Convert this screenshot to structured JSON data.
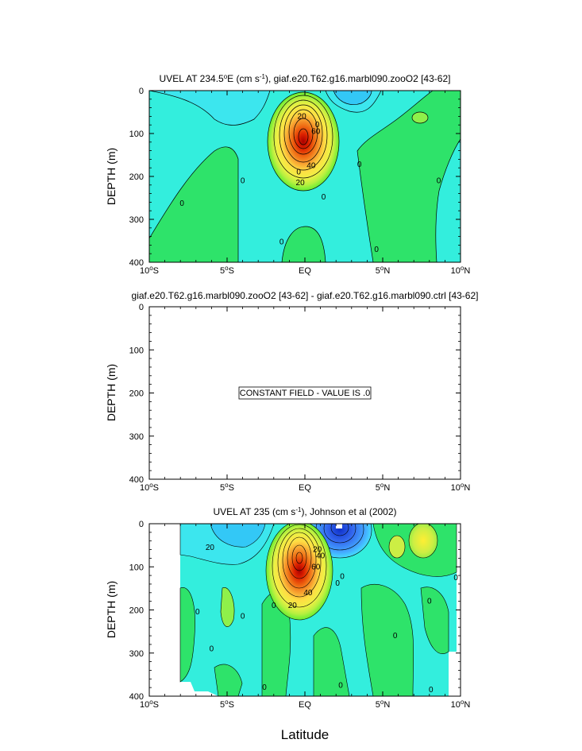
{
  "chart_data": [
    {
      "type": "heatmap",
      "title": "UVEL AT 234.5°E (cm s⁻¹), giaf.e20.T62.g16.marbl090.zooO2 [43-62]",
      "title_parts": {
        "main": "UVEL AT 234.5",
        "sup": "o",
        "mid": "E (cm s",
        "sup2": "-1",
        "end": "), giaf.e20.T62.g16.marbl090.zooO2 [43-62]"
      },
      "xlabel": "",
      "ylabel": "DEPTH (m)",
      "xlim": [
        -10,
        10
      ],
      "ylim": [
        400,
        0
      ],
      "x_ticks": [
        -10,
        -5,
        0,
        5,
        10
      ],
      "x_tick_labels": [
        "10°S",
        "5°S",
        "EQ",
        "5°N",
        "10°N"
      ],
      "y_ticks": [
        0,
        100,
        200,
        300,
        400
      ],
      "y_tick_labels": [
        "0",
        "100",
        "200",
        "300",
        "400"
      ],
      "contour_labels": [
        {
          "x": -0.2,
          "y": 60,
          "text": "20"
        },
        {
          "x": 0.8,
          "y": 80,
          "text": "0"
        },
        {
          "x": 0.7,
          "y": 95,
          "text": "60"
        },
        {
          "x": 0.4,
          "y": 175,
          "text": "40"
        },
        {
          "x": -0.3,
          "y": 215,
          "text": "20"
        },
        {
          "x": -0.4,
          "y": 190,
          "text": "0"
        },
        {
          "x": 1.2,
          "y": 248,
          "text": "0"
        },
        {
          "x": -4.0,
          "y": 210,
          "text": "0"
        },
        {
          "x": -7.9,
          "y": 263,
          "text": "0"
        },
        {
          "x": 3.5,
          "y": 172,
          "text": "0"
        },
        {
          "x": 8.6,
          "y": 210,
          "text": "0"
        },
        {
          "x": -1.5,
          "y": 353,
          "text": "0"
        },
        {
          "x": 4.6,
          "y": 370,
          "text": "0"
        }
      ],
      "features": [
        {
          "kind": "max",
          "x": 0,
          "y": 110,
          "value": 90
        },
        {
          "kind": "min",
          "x": 1.8,
          "y": 10,
          "value": -20
        }
      ]
    },
    {
      "type": "heatmap",
      "title": "giaf.e20.T62.g16.marbl090.zooO2 [43-62] - giaf.e20.T62.g16.marbl090.ctrl [43-62]",
      "xlabel": "",
      "ylabel": "DEPTH (m)",
      "xlim": [
        -10,
        10
      ],
      "ylim": [
        400,
        0
      ],
      "x_ticks": [
        -10,
        -5,
        0,
        5,
        10
      ],
      "x_tick_labels": [
        "10°S",
        "5°S",
        "EQ",
        "5°N",
        "10°N"
      ],
      "y_ticks": [
        0,
        100,
        200,
        300,
        400
      ],
      "y_tick_labels": [
        "0",
        "100",
        "200",
        "300",
        "400"
      ],
      "annotation": "CONSTANT FIELD - VALUE IS .0"
    },
    {
      "type": "heatmap",
      "title": "UVEL AT 235 (cm s⁻¹), Johnson et al (2002)",
      "title_parts": {
        "main": "UVEL AT 235 (cm s",
        "sup": "-1",
        "end": "), Johnson et al (2002)"
      },
      "xlabel": "Latitude",
      "ylabel": "DEPTH (m)",
      "xlim": [
        -10,
        10
      ],
      "ylim": [
        400,
        0
      ],
      "x_ticks": [
        -10,
        -5,
        0,
        5,
        10
      ],
      "x_tick_labels": [
        "10°S",
        "5°S",
        "EQ",
        "5°N",
        "10°N"
      ],
      "y_ticks": [
        0,
        100,
        200,
        300,
        400
      ],
      "y_tick_labels": [
        "0",
        "100",
        "200",
        "300",
        "400"
      ],
      "contour_labels": [
        {
          "x": -6.1,
          "y": 55,
          "text": "20"
        },
        {
          "x": 0.8,
          "y": 60,
          "text": "20"
        },
        {
          "x": 1.0,
          "y": 75,
          "text": "40"
        },
        {
          "x": 0.7,
          "y": 100,
          "text": "60"
        },
        {
          "x": 0.2,
          "y": 160,
          "text": "40"
        },
        {
          "x": -0.8,
          "y": 190,
          "text": "20"
        },
        {
          "x": 2.4,
          "y": 123,
          "text": "0"
        },
        {
          "x": 2.1,
          "y": 138,
          "text": "0"
        },
        {
          "x": -6.9,
          "y": 205,
          "text": "0"
        },
        {
          "x": -4.0,
          "y": 215,
          "text": "0"
        },
        {
          "x": -2.0,
          "y": 190,
          "text": "0"
        },
        {
          "x": -6.0,
          "y": 290,
          "text": "0"
        },
        {
          "x": 5.8,
          "y": 260,
          "text": "0"
        },
        {
          "x": 8.0,
          "y": 180,
          "text": "0"
        },
        {
          "x": 9.7,
          "y": 125,
          "text": "0"
        },
        {
          "x": -2.6,
          "y": 380,
          "text": "0"
        },
        {
          "x": 2.3,
          "y": 375,
          "text": "0"
        },
        {
          "x": 8.1,
          "y": 385,
          "text": "0"
        }
      ],
      "features": [
        {
          "kind": "max",
          "x": -0.3,
          "y": 90,
          "value": 90
        },
        {
          "kind": "min",
          "x": 2.3,
          "y": 15,
          "value": -40
        },
        {
          "kind": "max",
          "x": 8.0,
          "y": 30,
          "value": 30
        }
      ],
      "data_extent": {
        "x_start": -8.0,
        "x_end": 9.8
      }
    }
  ]
}
